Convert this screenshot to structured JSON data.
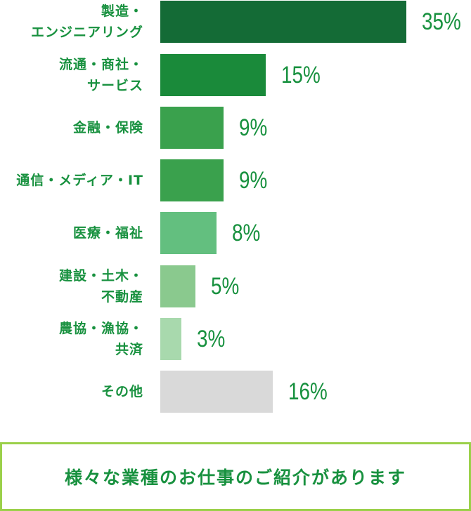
{
  "chart_data": {
    "type": "bar",
    "orientation": "horizontal",
    "categories": [
      [
        "製造・",
        "エンジニアリング"
      ],
      [
        "流通・商社・",
        "サービス"
      ],
      [
        "金融・保険"
      ],
      [
        "通信・メディア・IT"
      ],
      [
        "医療・福祉"
      ],
      [
        "建設・土木・",
        "不動産"
      ],
      [
        "農協・漁協・",
        "共済"
      ],
      [
        "その他"
      ]
    ],
    "values": [
      35,
      15,
      9,
      9,
      8,
      5,
      3,
      16
    ],
    "value_labels": [
      "35%",
      "15%",
      "9%",
      "9%",
      "8%",
      "5%",
      "3%",
      "16%"
    ],
    "bar_colors": [
      "#146b36",
      "#1a8a3a",
      "#3aa14d",
      "#3aa14d",
      "#63bf7f",
      "#8ac98e",
      "#a8d9ad",
      "#d9d9d9"
    ],
    "label_color": "#18913f",
    "grid": false,
    "legend": "none"
  },
  "footer": {
    "text": "様々な業種のお仕事のご紹介があります"
  }
}
